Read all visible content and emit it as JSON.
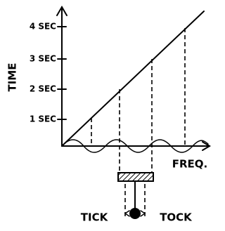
{
  "axes": {
    "y_label": "TIME",
    "x_label": "FREQ."
  },
  "y_ticks": [
    "4 SEC",
    "3 SEC",
    "2 SEC",
    "1 SEC"
  ],
  "pendulum": {
    "left_label": "TICK",
    "right_label": "TOCK"
  }
}
